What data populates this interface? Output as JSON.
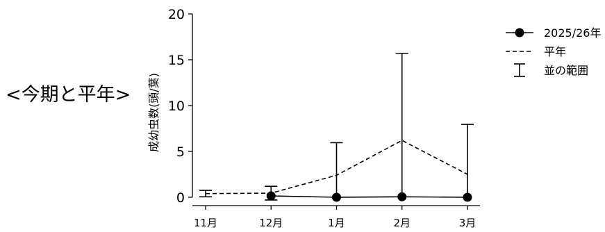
{
  "heading": "<今期と平年>",
  "chart_data": {
    "type": "line",
    "categories": [
      "11月",
      "12月",
      "1月",
      "2月",
      "3月"
    ],
    "ylabel": "成幼虫数(頭/葉)",
    "ylim": [
      0,
      20
    ],
    "yticks": [
      0,
      5,
      10,
      15,
      20
    ],
    "grid": false,
    "legend_position": "top-right",
    "series": [
      {
        "name": "2025/26年",
        "values": [
          null,
          0.15,
          0.0,
          0.05,
          0.0
        ],
        "style": "solid-marker",
        "color": "#000000"
      },
      {
        "name": "平年",
        "values": [
          0.4,
          0.45,
          2.4,
          6.2,
          2.5
        ],
        "style": "dashed",
        "color": "#000000"
      }
    ],
    "range": {
      "name": "並の範囲",
      "low": [
        0.05,
        -0.3,
        null,
        null,
        null
      ],
      "high": [
        0.75,
        1.2,
        5.95,
        15.7,
        7.95
      ]
    }
  }
}
